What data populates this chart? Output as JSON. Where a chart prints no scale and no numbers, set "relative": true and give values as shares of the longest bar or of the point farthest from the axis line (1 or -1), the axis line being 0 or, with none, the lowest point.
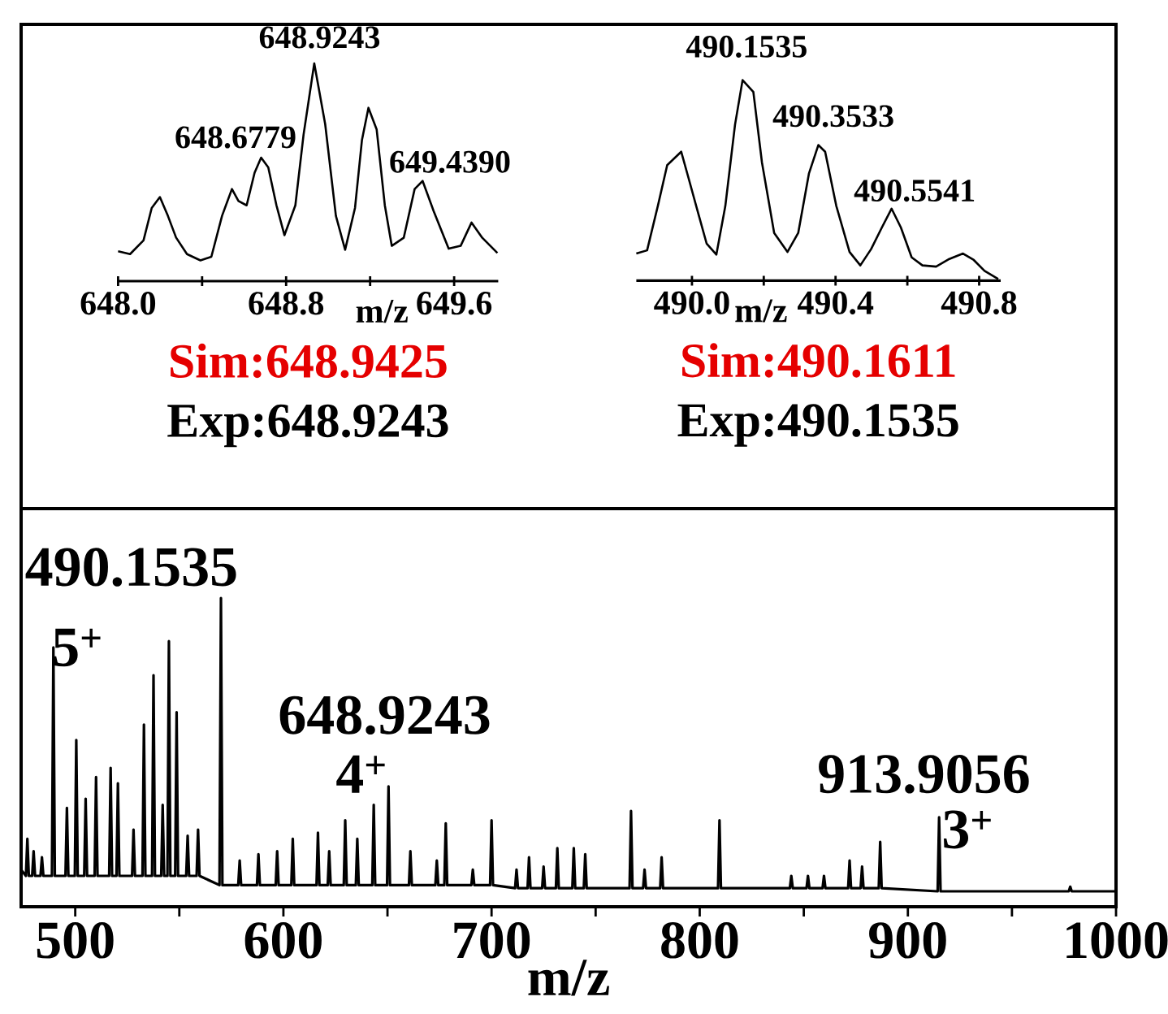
{
  "chart_data": [
    {
      "type": "line",
      "relative": true,
      "color": "#000000",
      "xlabel": "m/z",
      "xlim": [
        648.0,
        649.81
      ],
      "xticks": [
        {
          "value": 648.0,
          "label": "648.0"
        },
        {
          "value": 648.4,
          "label": null
        },
        648.8,
        {
          "value": 649.2,
          "label": null
        },
        649.6
      ],
      "x": [
        648.0,
        648.057,
        648.121,
        648.16,
        648.199,
        648.237,
        648.276,
        648.328,
        648.392,
        648.444,
        648.495,
        648.542,
        648.573,
        648.612,
        648.65,
        648.681,
        648.715,
        648.754,
        648.792,
        648.844,
        648.883,
        648.934,
        648.986,
        649.037,
        649.081,
        649.128,
        649.161,
        649.192,
        649.231,
        649.27,
        649.303,
        649.36,
        649.412,
        649.45,
        649.502,
        649.574,
        649.631,
        649.683,
        649.734,
        649.806
      ],
      "values": [
        0.137,
        0.124,
        0.187,
        0.336,
        0.386,
        0.3,
        0.2,
        0.124,
        0.095,
        0.112,
        0.3,
        0.423,
        0.368,
        0.348,
        0.498,
        0.567,
        0.522,
        0.348,
        0.211,
        0.348,
        0.672,
        1.0,
        0.721,
        0.3,
        0.144,
        0.336,
        0.647,
        0.796,
        0.697,
        0.348,
        0.162,
        0.199,
        0.423,
        0.46,
        0.323,
        0.149,
        0.162,
        0.269,
        0.199,
        0.129
      ],
      "annotations": [
        "648.9243",
        "648.6779",
        "649.4390",
        "Sim:648.9425",
        "Exp:648.9243"
      ]
    },
    {
      "type": "line",
      "relative": true,
      "color": "#000000",
      "xlabel": "m/z",
      "xlim": [
        489.845,
        490.86
      ],
      "xticks": [
        {
          "value": 490.0,
          "label": "490.0"
        },
        {
          "value": 490.2,
          "label": null
        },
        490.4,
        {
          "value": 490.6,
          "label": null
        },
        490.8
      ],
      "x": [
        489.845,
        489.875,
        489.905,
        489.931,
        489.97,
        489.991,
        490.018,
        490.041,
        490.068,
        490.093,
        490.12,
        490.141,
        490.171,
        490.195,
        490.229,
        490.266,
        490.296,
        490.326,
        490.352,
        490.371,
        490.402,
        490.439,
        490.469,
        490.499,
        490.529,
        490.556,
        490.582,
        490.612,
        490.642,
        490.68,
        490.717,
        490.755,
        490.785,
        490.815,
        490.853
      ],
      "values": [
        0.135,
        0.151,
        0.373,
        0.576,
        0.643,
        0.508,
        0.332,
        0.184,
        0.13,
        0.373,
        0.778,
        1.0,
        0.941,
        0.589,
        0.238,
        0.143,
        0.238,
        0.535,
        0.676,
        0.643,
        0.373,
        0.143,
        0.076,
        0.157,
        0.265,
        0.359,
        0.265,
        0.116,
        0.076,
        0.07,
        0.108,
        0.135,
        0.103,
        0.049,
        0.008
      ],
      "annotations": [
        "490.1535",
        "490.3533",
        "490.5541",
        "Sim:490.1611",
        "Exp:490.1535"
      ]
    },
    {
      "type": "line",
      "relative": true,
      "color": "#000000",
      "xlabel": "m/z",
      "xlim": [
        474,
        1000
      ],
      "xticks": [
        500,
        {
          "value": 550,
          "label": null
        },
        600,
        {
          "value": 650,
          "label": null
        },
        700,
        {
          "value": 750,
          "label": null
        },
        800,
        {
          "value": 850,
          "label": null
        },
        900,
        {
          "value": 950,
          "label": null
        },
        1000
      ],
      "x": [
        474,
        476.3,
        477,
        477.7,
        479.3,
        480,
        480.7,
        483.3,
        484,
        484.7,
        488.8,
        489.5,
        490.2,
        495.3,
        496,
        496.7,
        499.8,
        500.5,
        501.2,
        504.3,
        505,
        505.7,
        509.3,
        510,
        510.7,
        516.3,
        517,
        517.7,
        519.8,
        520.5,
        521.2,
        527.3,
        528,
        528.7,
        532.3,
        533,
        533.7,
        536.9,
        537.6,
        538.3,
        541.3,
        542,
        542.7,
        544.3,
        545,
        545.7,
        548,
        548.7,
        549.4,
        553.3,
        554,
        554.7,
        558.3,
        559,
        559.7,
        569.3,
        570,
        570.7,
        578.3,
        579,
        579.7,
        587.3,
        588,
        588.7,
        596.3,
        597,
        597.7,
        603.8,
        604.5,
        605.2,
        615.9,
        616.6,
        617.3,
        621.3,
        622,
        622.7,
        629,
        629.7,
        630.4,
        634.8,
        635.5,
        636.2,
        642.7,
        643.4,
        644.1,
        649.8,
        650.5,
        651.2,
        660.3,
        661,
        661.7,
        673,
        673.7,
        674.4,
        677.3,
        678,
        678.7,
        690.3,
        691,
        691.7,
        699.3,
        700,
        700.7,
        711.3,
        712,
        712.7,
        717.3,
        718,
        718.7,
        724.3,
        725,
        725.7,
        730.9,
        731.6,
        732.3,
        738.8,
        739.5,
        740.2,
        744.3,
        745,
        745.7,
        766.3,
        767,
        767.7,
        772.8,
        773.5,
        774.2,
        781,
        781.7,
        782.4,
        808.8,
        809.5,
        810.2,
        843.3,
        844,
        844.7,
        851.3,
        852,
        852.7,
        859,
        859.7,
        860.4,
        871.3,
        872,
        872.7,
        877.3,
        878,
        878.7,
        886,
        886.7,
        887.4,
        914.3,
        915,
        915.7,
        977.3,
        978,
        978.7,
        1000
      ],
      "values": [
        0.12,
        0.1,
        0.22,
        0.1,
        0.1,
        0.18,
        0.1,
        0.1,
        0.16,
        0.1,
        0.1,
        0.84,
        0.1,
        0.1,
        0.32,
        0.1,
        0.1,
        0.54,
        0.1,
        0.1,
        0.35,
        0.1,
        0.1,
        0.42,
        0.1,
        0.1,
        0.45,
        0.1,
        0.1,
        0.4,
        0.1,
        0.1,
        0.25,
        0.1,
        0.1,
        0.59,
        0.1,
        0.1,
        0.75,
        0.1,
        0.1,
        0.33,
        0.1,
        0.1,
        0.86,
        0.1,
        0.1,
        0.63,
        0.1,
        0.1,
        0.23,
        0.1,
        0.1,
        0.25,
        0.1,
        0.07,
        1.0,
        0.07,
        0.07,
        0.15,
        0.07,
        0.07,
        0.17,
        0.07,
        0.07,
        0.18,
        0.07,
        0.07,
        0.22,
        0.07,
        0.07,
        0.24,
        0.07,
        0.07,
        0.18,
        0.07,
        0.07,
        0.28,
        0.07,
        0.07,
        0.22,
        0.07,
        0.07,
        0.33,
        0.07,
        0.07,
        0.39,
        0.07,
        0.07,
        0.18,
        0.07,
        0.07,
        0.15,
        0.07,
        0.07,
        0.27,
        0.07,
        0.07,
        0.12,
        0.07,
        0.07,
        0.28,
        0.07,
        0.06,
        0.12,
        0.06,
        0.06,
        0.16,
        0.06,
        0.06,
        0.13,
        0.06,
        0.06,
        0.19,
        0.06,
        0.06,
        0.19,
        0.06,
        0.06,
        0.17,
        0.06,
        0.06,
        0.31,
        0.06,
        0.06,
        0.12,
        0.06,
        0.06,
        0.16,
        0.06,
        0.06,
        0.28,
        0.06,
        0.06,
        0.1,
        0.06,
        0.06,
        0.1,
        0.06,
        0.06,
        0.1,
        0.06,
        0.06,
        0.15,
        0.06,
        0.06,
        0.13,
        0.06,
        0.06,
        0.21,
        0.06,
        0.05,
        0.29,
        0.05,
        0.05,
        0.065,
        0.05,
        0.05
      ],
      "annotations": [
        "490.1535",
        "5$^{+}$",
        "648.9243",
        "4$^{+}$",
        "913.9056",
        "3$^{+}$"
      ]
    }
  ]
}
